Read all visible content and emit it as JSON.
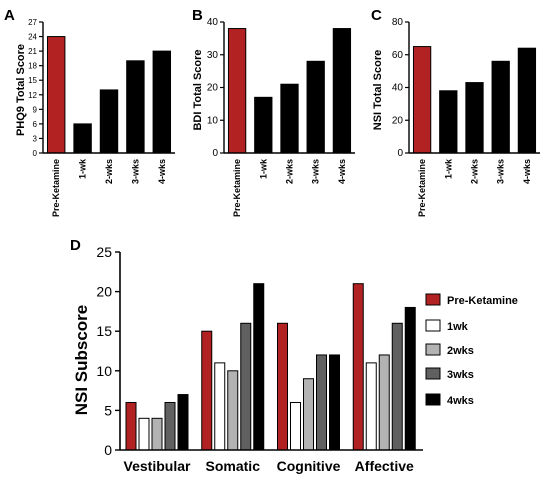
{
  "colors": {
    "pre": "#b22222",
    "wk1": "#ffffff",
    "wk2": "#b3b3b3",
    "wk3": "#606060",
    "wk4": "#000000"
  },
  "chart_data": [
    {
      "panel": "A",
      "type": "bar",
      "ylabel": "PHQ9 Total Score",
      "ylim": [
        0,
        27
      ],
      "yticks": [
        0,
        3,
        6,
        9,
        12,
        15,
        18,
        21,
        24,
        27
      ],
      "categories": [
        "Pre-Ketamine",
        "1-wk",
        "2-wks",
        "3-wks",
        "4-wks"
      ],
      "values": [
        24,
        6,
        13,
        19,
        21
      ]
    },
    {
      "panel": "B",
      "type": "bar",
      "ylabel": "BDI Total  Score",
      "ylim": [
        0,
        40
      ],
      "yticks": [
        0,
        10,
        20,
        30,
        40
      ],
      "categories": [
        "Pre-Ketamine",
        "1-wk",
        "2-wks",
        "3-wks",
        "4-wks"
      ],
      "values": [
        38,
        17,
        21,
        28,
        38
      ]
    },
    {
      "panel": "C",
      "type": "bar",
      "ylabel": "NSI Total  Score",
      "ylim": [
        0,
        80
      ],
      "yticks": [
        0,
        20,
        40,
        60,
        80
      ],
      "categories": [
        "Pre-Ketamine",
        "1-wk",
        "2-wks",
        "3-wks",
        "4-wks"
      ],
      "values": [
        65,
        38,
        43,
        56,
        64
      ]
    },
    {
      "panel": "D",
      "type": "bar",
      "ylabel": "NSI  Subscore",
      "ylim": [
        0,
        25
      ],
      "yticks": [
        0,
        5,
        10,
        15,
        20,
        25
      ],
      "categories": [
        "Vestibular",
        "Somatic",
        "Cognitive",
        "Affective"
      ],
      "series": [
        {
          "name": "Pre-Ketamine",
          "values": [
            6,
            15,
            16,
            21
          ]
        },
        {
          "name": "1wk",
          "values": [
            4,
            11,
            6,
            11
          ]
        },
        {
          "name": "2wks",
          "values": [
            4,
            10,
            9,
            12
          ]
        },
        {
          "name": "3wks",
          "values": [
            6,
            16,
            12,
            16
          ]
        },
        {
          "name": "4wks",
          "values": [
            7,
            21,
            12,
            18
          ]
        }
      ],
      "legend": "right"
    }
  ]
}
